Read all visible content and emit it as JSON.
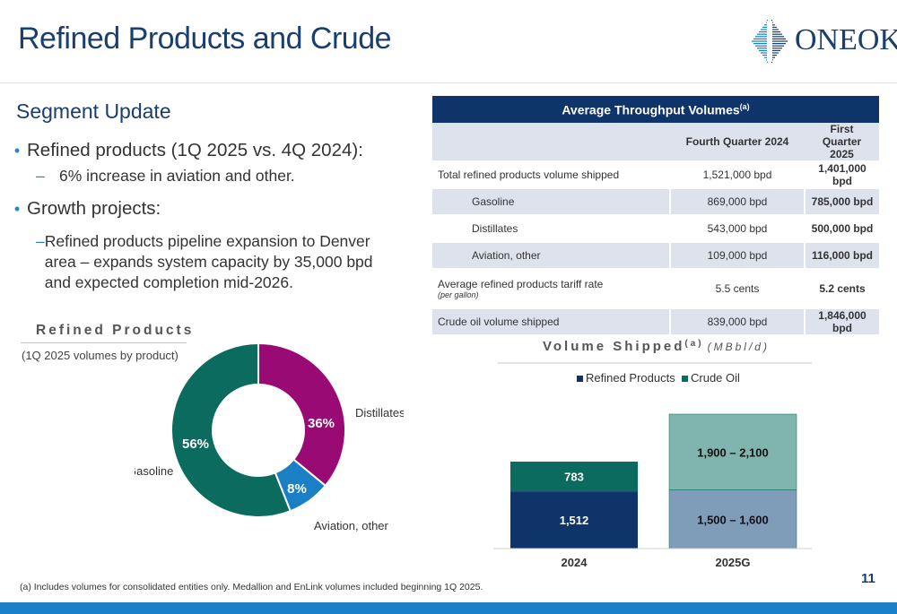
{
  "title": "Refined Products and Crude",
  "logo_text": "ONEOK",
  "segment": {
    "heading": "Segment Update",
    "bullets": [
      {
        "text": "Refined products (1Q 2025 vs. 4Q 2024):",
        "sub": [
          "6% increase in aviation and other."
        ]
      },
      {
        "text": "Growth projects:",
        "sub": [
          "Refined products pipeline expansion to Denver area – expands system capacity by 35,000 bpd and expected completion mid-2026."
        ]
      }
    ]
  },
  "table": {
    "title": "Average Throughput Volumes",
    "title_sup": "(a)",
    "col1": "Fourth Quarter 2024",
    "col2": "First Quarter 2025",
    "rows": [
      {
        "label": "Total refined products volume shipped",
        "q4": "1,521,000 bpd",
        "q1": "1,401,000 bpd"
      },
      {
        "label": "Gasoline",
        "q4": "869,000 bpd",
        "q1": "785,000 bpd"
      },
      {
        "label": "Distillates",
        "q4": "543,000 bpd",
        "q1": "500,000 bpd"
      },
      {
        "label": "Aviation, other",
        "q4": "109,000 bpd",
        "q1": "116,000 bpd"
      },
      {
        "label": "Average refined products tariff rate",
        "note": "(per gallon)",
        "q4": "5.5 cents",
        "q1": "5.2 cents"
      },
      {
        "label": "Crude oil volume shipped",
        "q4": "839,000 bpd",
        "q1": "1,846,000 bpd"
      }
    ]
  },
  "chart_data": [
    {
      "type": "pie",
      "title": "Refined Products",
      "subtitle": "(1Q 2025 volumes by product)",
      "categories": [
        "Distillates",
        "Aviation, other",
        "Gasoline"
      ],
      "values": [
        36,
        8,
        56
      ],
      "labels": [
        "36%",
        "8%",
        "56%"
      ],
      "colors": [
        "#9a0a74",
        "#1a7fc4",
        "#0a6b5e"
      ],
      "donut": true
    },
    {
      "type": "bar",
      "stacked": true,
      "title": "Volume Shipped",
      "title_sup": "(a)",
      "units": "(MBbl/d)",
      "categories": [
        "2024",
        "2025G"
      ],
      "series": [
        {
          "name": "Refined Products",
          "values": [
            1512,
            1550
          ],
          "labels": [
            "1,512",
            "1,500 – 1,600"
          ],
          "colors": [
            "#0e3469",
            "#7f9db9"
          ]
        },
        {
          "name": "Crude Oil",
          "values": [
            783,
            2000
          ],
          "labels": [
            "783",
            "1,900 – 2,100"
          ],
          "colors": [
            "#0a6b5e",
            "#7fb5ae"
          ]
        }
      ],
      "legend": "top"
    }
  ],
  "footnote": "(a)  Includes volumes for consolidated entities only. Medallion and EnLink volumes included beginning 1Q 2025.",
  "page_number": "11"
}
